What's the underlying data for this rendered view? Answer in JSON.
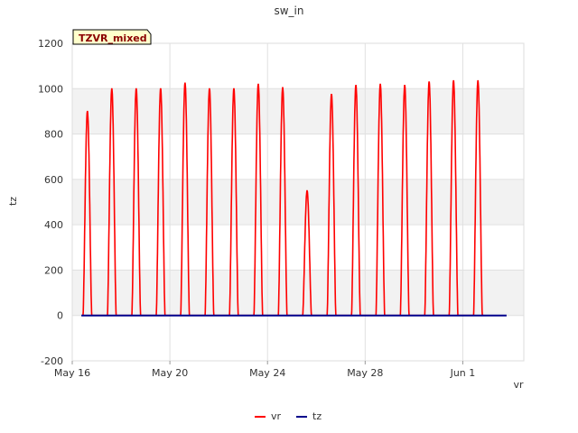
{
  "chart_data": {
    "type": "line",
    "title": "sw_in",
    "xlabel": "vr",
    "ylabel": "tz",
    "badge": "TZVR_mixed",
    "ylim": [
      -200,
      1200
    ],
    "yticks": [
      -200,
      0,
      200,
      400,
      600,
      800,
      1000,
      1200
    ],
    "xlim": [
      "2024-05-16T00:00",
      "2024-06-03T12:00"
    ],
    "xticks": [
      {
        "date": "2024-05-16",
        "label": "May 16"
      },
      {
        "date": "2024-05-20",
        "label": "May 20"
      },
      {
        "date": "2024-05-24",
        "label": "May 24"
      },
      {
        "date": "2024-05-28",
        "label": "May 28"
      },
      {
        "date": "2024-06-01",
        "label": "Jun 1"
      }
    ],
    "grid": true,
    "legend_position": "bottom",
    "series": [
      {
        "name": "vr",
        "color": "#ff0000",
        "start": "2024-05-16",
        "daily_peaks": [
          900,
          1000,
          1000,
          1000,
          1025,
          1000,
          1000,
          1020,
          1005,
          550,
          975,
          1015,
          1020,
          1015,
          1030,
          1035,
          1035
        ]
      },
      {
        "name": "tz",
        "color": "#00008b",
        "points": [
          {
            "x": "2024-05-16T09:00",
            "y": 0
          },
          {
            "x": "2024-06-02T19:00",
            "y": 0
          }
        ]
      }
    ]
  }
}
